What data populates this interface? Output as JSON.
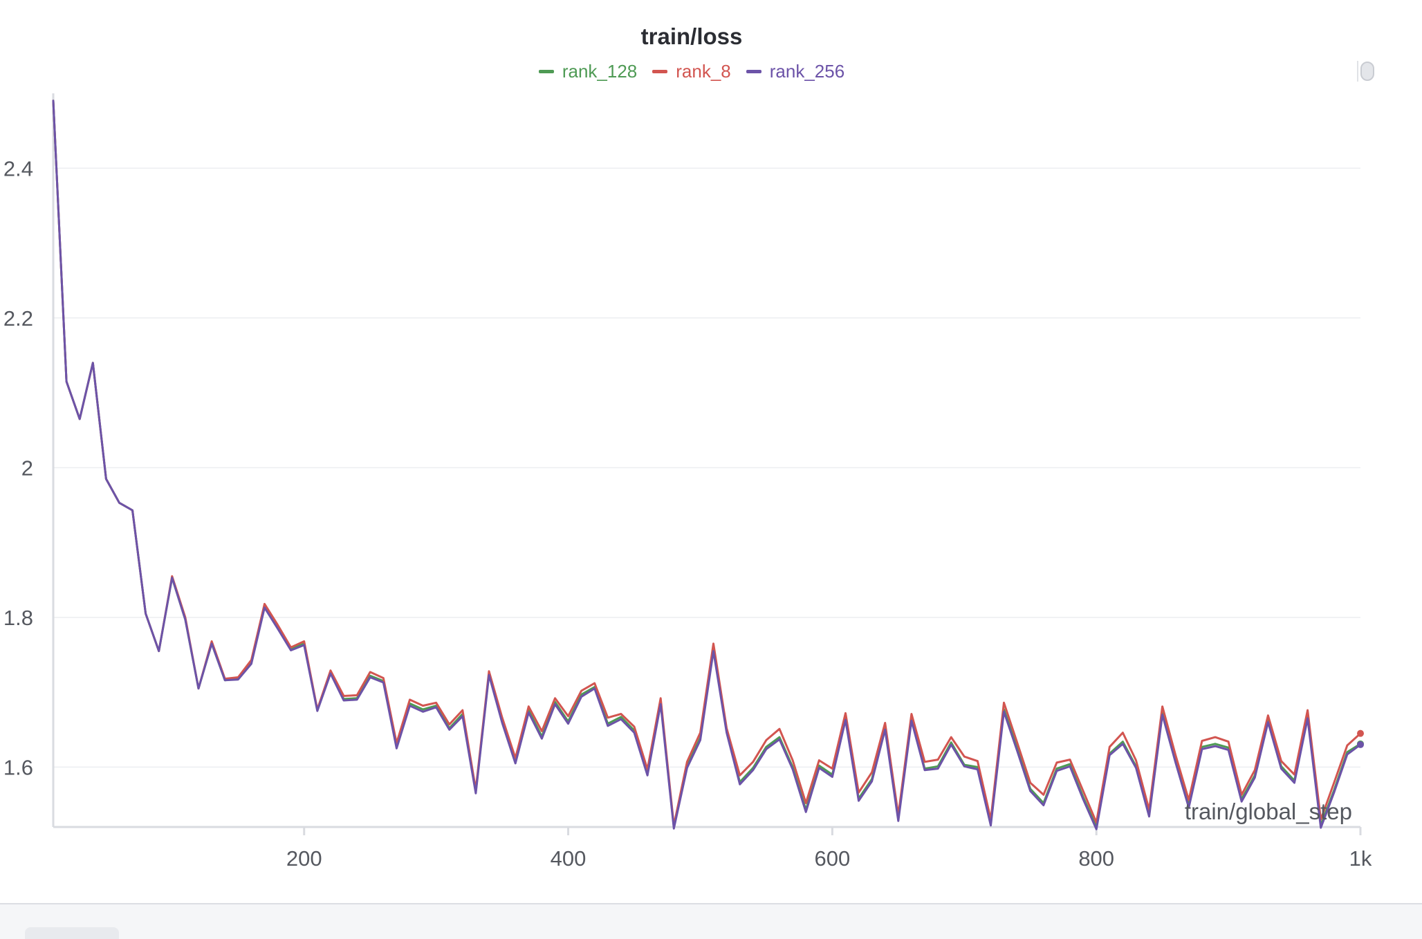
{
  "chart_data": {
    "type": "line",
    "title": "train/loss",
    "xlabel": "train/global_step",
    "ylabel": "",
    "xlim": [
      10,
      1000
    ],
    "ylim": [
      1.52,
      2.5
    ],
    "x_ticks": [
      200,
      400,
      600,
      800,
      1000
    ],
    "x_tick_labels": [
      "200",
      "400",
      "600",
      "800",
      "1k"
    ],
    "y_ticks": [
      1.6,
      1.8,
      2.0,
      2.2,
      2.4
    ],
    "y_tick_labels": [
      "1.6",
      "1.8",
      "2",
      "2.2",
      "2.4"
    ],
    "grid": true,
    "legend_position": "top-center",
    "x": [
      10,
      20,
      30,
      40,
      50,
      60,
      70,
      80,
      90,
      100,
      110,
      120,
      130,
      140,
      150,
      160,
      170,
      180,
      190,
      200,
      210,
      220,
      230,
      240,
      250,
      260,
      270,
      280,
      290,
      300,
      310,
      320,
      330,
      340,
      350,
      360,
      370,
      380,
      390,
      400,
      410,
      420,
      430,
      440,
      450,
      460,
      470,
      480,
      490,
      500,
      510,
      520,
      530,
      540,
      550,
      560,
      570,
      580,
      590,
      600,
      610,
      620,
      630,
      640,
      650,
      660,
      670,
      680,
      690,
      700,
      710,
      720,
      730,
      740,
      750,
      760,
      770,
      780,
      790,
      800,
      810,
      820,
      830,
      840,
      850,
      860,
      870,
      880,
      890,
      900,
      910,
      920,
      930,
      940,
      950,
      960,
      970,
      980,
      990,
      1000
    ],
    "series": [
      {
        "name": "rank_128",
        "color": "#4e9a54",
        "values": [
          2.49,
          2.115,
          2.065,
          2.14,
          1.985,
          1.953,
          1.943,
          1.805,
          1.755,
          1.853,
          1.797,
          1.705,
          1.765,
          1.716,
          1.718,
          1.74,
          1.815,
          1.787,
          1.758,
          1.765,
          1.676,
          1.726,
          1.691,
          1.692,
          1.722,
          1.715,
          1.627,
          1.685,
          1.677,
          1.682,
          1.652,
          1.671,
          1.567,
          1.725,
          1.662,
          1.607,
          1.676,
          1.641,
          1.687,
          1.661,
          1.697,
          1.707,
          1.658,
          1.667,
          1.649,
          1.591,
          1.687,
          1.52,
          1.602,
          1.639,
          1.758,
          1.648,
          1.58,
          1.599,
          1.627,
          1.64,
          1.6,
          1.543,
          1.602,
          1.59,
          1.666,
          1.558,
          1.584,
          1.653,
          1.531,
          1.665,
          1.598,
          1.601,
          1.633,
          1.603,
          1.6,
          1.525,
          1.677,
          1.626,
          1.571,
          1.552,
          1.598,
          1.604,
          1.56,
          1.52,
          1.618,
          1.634,
          1.601,
          1.536,
          1.672,
          1.609,
          1.549,
          1.627,
          1.631,
          1.626,
          1.557,
          1.589,
          1.663,
          1.601,
          1.582,
          1.668,
          1.522,
          1.569,
          1.62,
          1.631
        ]
      },
      {
        "name": "rank_8",
        "color": "#d25550",
        "values": [
          2.49,
          2.115,
          2.065,
          2.14,
          1.985,
          1.953,
          1.943,
          1.805,
          1.755,
          1.855,
          1.8,
          1.705,
          1.768,
          1.718,
          1.72,
          1.743,
          1.818,
          1.79,
          1.76,
          1.768,
          1.677,
          1.729,
          1.695,
          1.696,
          1.727,
          1.719,
          1.632,
          1.69,
          1.682,
          1.686,
          1.657,
          1.676,
          1.57,
          1.728,
          1.666,
          1.612,
          1.681,
          1.648,
          1.692,
          1.668,
          1.702,
          1.712,
          1.666,
          1.671,
          1.654,
          1.597,
          1.692,
          1.522,
          1.607,
          1.646,
          1.765,
          1.652,
          1.589,
          1.607,
          1.636,
          1.651,
          1.609,
          1.552,
          1.609,
          1.598,
          1.672,
          1.566,
          1.593,
          1.659,
          1.536,
          1.671,
          1.607,
          1.61,
          1.64,
          1.614,
          1.608,
          1.53,
          1.686,
          1.633,
          1.579,
          1.563,
          1.606,
          1.61,
          1.568,
          1.526,
          1.627,
          1.646,
          1.609,
          1.543,
          1.681,
          1.616,
          1.556,
          1.635,
          1.64,
          1.634,
          1.563,
          1.596,
          1.669,
          1.608,
          1.59,
          1.676,
          1.53,
          1.579,
          1.629,
          1.645
        ]
      },
      {
        "name": "rank_256",
        "color": "#6c53a8",
        "values": [
          2.49,
          2.115,
          2.065,
          2.14,
          1.985,
          1.953,
          1.943,
          1.805,
          1.755,
          1.853,
          1.797,
          1.705,
          1.765,
          1.716,
          1.717,
          1.738,
          1.813,
          1.785,
          1.756,
          1.763,
          1.675,
          1.725,
          1.689,
          1.69,
          1.72,
          1.713,
          1.625,
          1.682,
          1.674,
          1.68,
          1.65,
          1.668,
          1.565,
          1.723,
          1.659,
          1.605,
          1.673,
          1.638,
          1.684,
          1.658,
          1.694,
          1.705,
          1.655,
          1.664,
          1.646,
          1.589,
          1.684,
          1.518,
          1.599,
          1.636,
          1.755,
          1.646,
          1.577,
          1.596,
          1.624,
          1.637,
          1.597,
          1.54,
          1.599,
          1.587,
          1.663,
          1.555,
          1.581,
          1.65,
          1.528,
          1.662,
          1.596,
          1.598,
          1.63,
          1.601,
          1.597,
          1.522,
          1.674,
          1.622,
          1.568,
          1.549,
          1.595,
          1.601,
          1.557,
          1.517,
          1.616,
          1.631,
          1.599,
          1.534,
          1.67,
          1.606,
          1.546,
          1.624,
          1.628,
          1.623,
          1.554,
          1.586,
          1.66,
          1.598,
          1.579,
          1.665,
          1.519,
          1.566,
          1.617,
          1.63
        ]
      }
    ]
  }
}
